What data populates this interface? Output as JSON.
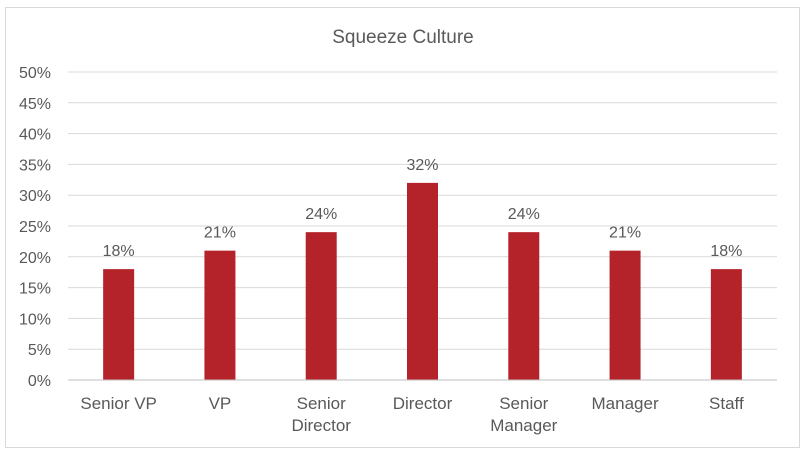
{
  "chart_data": {
    "type": "bar",
    "title": "Squeeze Culture",
    "categories": [
      "Senior VP",
      "VP",
      "Senior Director",
      "Director",
      "Senior Manager",
      "Manager",
      "Staff"
    ],
    "category_lines": [
      [
        "Senior VP"
      ],
      [
        "VP"
      ],
      [
        "Senior",
        "Director"
      ],
      [
        "Director"
      ],
      [
        "Senior",
        "Manager"
      ],
      [
        "Manager"
      ],
      [
        "Staff"
      ]
    ],
    "values": [
      18,
      21,
      24,
      32,
      24,
      21,
      18
    ],
    "data_labels": [
      "18%",
      "21%",
      "24%",
      "32%",
      "24%",
      "21%",
      "18%"
    ],
    "ylim": [
      0,
      50
    ],
    "yticks": [
      0,
      5,
      10,
      15,
      20,
      25,
      30,
      35,
      40,
      45,
      50
    ],
    "ytick_labels": [
      "0%",
      "5%",
      "10%",
      "15%",
      "20%",
      "25%",
      "30%",
      "35%",
      "40%",
      "45%",
      "50%"
    ],
    "xlabel": "",
    "ylabel": "",
    "grid": true,
    "legend": "none",
    "bar_color": "#b5232a"
  }
}
